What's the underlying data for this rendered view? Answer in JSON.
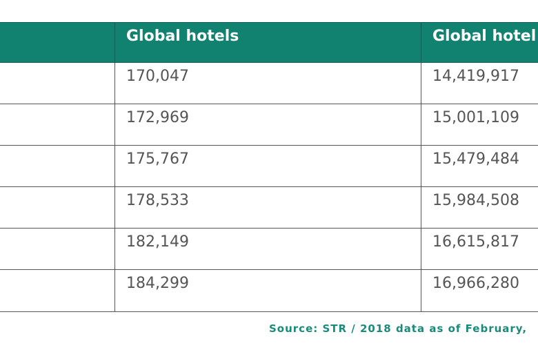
{
  "chart_data": {
    "type": "table",
    "columns": [
      "",
      "Global hotels",
      "Global hotel"
    ],
    "rows": [
      [
        "",
        "170,047",
        "14,419,917"
      ],
      [
        "",
        "172,969",
        "15,001,109"
      ],
      [
        "",
        "175,767",
        "15,479,484"
      ],
      [
        "",
        "178,533",
        "15,984,508"
      ],
      [
        "",
        "182,149",
        "16,615,817"
      ],
      [
        "",
        "184,299",
        "16,966,280"
      ]
    ],
    "source": "Source: STR / 2018 data as of February,"
  },
  "colors": {
    "header_bg": "#128270",
    "header_text": "#ffffff",
    "cell_text": "#555555",
    "source_text": "#1a8a7a"
  }
}
